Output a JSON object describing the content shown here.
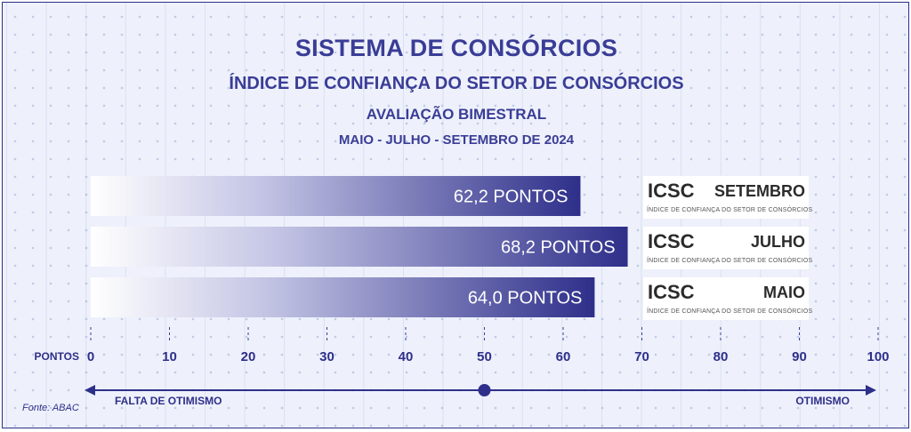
{
  "titles": {
    "main": "SISTEMA DE CONSÓRCIOS",
    "subtitle": "ÍNDICE DE CONFIANÇA DO SETOR DE CONSÓRCIOS",
    "subtitle2": "AVALIAÇÃO BIMESTRAL",
    "period": "MAIO - JULHO - SETEMBRO DE 2024"
  },
  "chart_data": {
    "type": "bar",
    "orientation": "horizontal",
    "categories": [
      "SETEMBRO",
      "JULHO",
      "MAIO"
    ],
    "values": [
      62.2,
      68.2,
      64.0
    ],
    "value_labels": [
      "62,2 PONTOS",
      "68,2 PONTOS",
      "64,0 PONTOS"
    ],
    "xlim": [
      0,
      100
    ],
    "x_ticks": [
      0,
      10,
      20,
      30,
      40,
      50,
      60,
      70,
      80,
      90,
      100
    ],
    "x_tick_labels": [
      "0",
      "10",
      "20",
      "30",
      "40",
      "50",
      "60",
      "70",
      "80",
      "90",
      "100"
    ],
    "xlabel": "PONTOS",
    "neutral_value": 50,
    "left_label": "FALTA DE OTIMISMO",
    "right_label": "OTIMISMO",
    "bar_color": "#2e2f8a",
    "grid": true
  },
  "cards": [
    {
      "code": "ICSC",
      "month": "SETEMBRO",
      "subtitle": "ÍNDICE DE CONFIANÇA DO SETOR DE CONSÓRCIOS"
    },
    {
      "code": "ICSC",
      "month": "JULHO",
      "subtitle": "ÍNDICE DE CONFIANÇA DO SETOR DE CONSÓRCIOS"
    },
    {
      "code": "ICSC",
      "month": "MAIO",
      "subtitle": "ÍNDICE DE CONFIANÇA DO SETOR DE CONSÓRCIOS"
    }
  ],
  "source": "Fonte: ABAC"
}
